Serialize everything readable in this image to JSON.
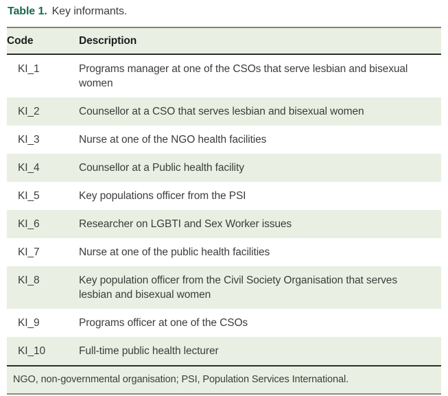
{
  "title": {
    "label": "Table 1.",
    "caption": "Key informants."
  },
  "table": {
    "columns": [
      "Code",
      "Description"
    ],
    "rows": [
      {
        "code": "KI_1",
        "description": "Programs manager at one of the CSOs that serve lesbian and bisexual women"
      },
      {
        "code": "KI_2",
        "description": "Counsellor at a CSO that serves lesbian and bisexual women"
      },
      {
        "code": "KI_3",
        "description": "Nurse at one of the NGO health facilities"
      },
      {
        "code": "KI_4",
        "description": "Counsellor at a Public health facility"
      },
      {
        "code": "KI_5",
        "description": "Key populations officer from the PSI"
      },
      {
        "code": "KI_6",
        "description": "Researcher on LGBTI and Sex Worker issues"
      },
      {
        "code": "KI_7",
        "description": "Nurse at one of the public health facilities"
      },
      {
        "code": "KI_8",
        "description": "Key population officer from the Civil Society Organisation that serves lesbian and bisexual women"
      },
      {
        "code": "KI_9",
        "description": "Programs officer at one of the CSOs"
      },
      {
        "code": "KI_10",
        "description": "Full-time public health lecturer"
      }
    ],
    "footnote": "NGO, non-governmental organisation; PSI, Population Services International."
  },
  "colors": {
    "band_green": "#e9f0e3",
    "title_green": "#156950",
    "rule_top_gray": "#807f7a",
    "rule_dark": "#2e2d2b",
    "rule_bottom_gray": "#8b8b86",
    "body_text": "#3d3c3a",
    "header_text": "#1c1c1c"
  }
}
